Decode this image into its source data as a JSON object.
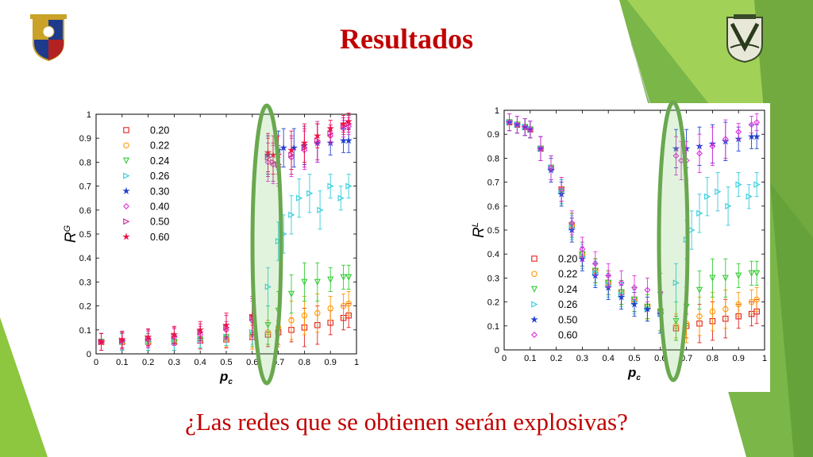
{
  "slide": {
    "title": "Resultados",
    "question": "¿Las redes que se obtienen serán explosivas?",
    "logos": [
      "university-crest-icon",
      "unam-crest-icon"
    ],
    "colors": {
      "title": "#c00000",
      "accent_green": "#8dc63f",
      "highlight_ellipse": "#6aa84f"
    }
  },
  "chart_data": [
    {
      "type": "scatter",
      "title": "",
      "xlabel": "p_c",
      "ylabel": "R^G",
      "xlim": [
        0,
        1
      ],
      "ylim": [
        0,
        1
      ],
      "xticks": [
        "0",
        "0.1",
        "0.2",
        "0.3",
        "0.4",
        "0.5",
        "0.6",
        "0.7",
        "0.8",
        "0.9",
        "1"
      ],
      "yticks": [
        "0",
        "0.1",
        "0.2",
        "0.3",
        "0.4",
        "0.5",
        "0.6",
        "0.7",
        "0.8",
        "0.9",
        "1"
      ],
      "legend_position": "top-left",
      "error_bars": true,
      "series": [
        {
          "name": "0.20",
          "marker": "square",
          "color": "#e02020",
          "x": [
            0.02,
            0.1,
            0.2,
            0.3,
            0.4,
            0.5,
            0.6,
            0.66,
            0.7,
            0.75,
            0.8,
            0.85,
            0.9,
            0.95,
            0.97
          ],
          "y": [
            0.05,
            0.05,
            0.05,
            0.05,
            0.055,
            0.06,
            0.07,
            0.08,
            0.09,
            0.1,
            0.11,
            0.12,
            0.13,
            0.15,
            0.16
          ]
        },
        {
          "name": "0.22",
          "marker": "circle",
          "color": "#ff9900",
          "x": [
            0.02,
            0.1,
            0.2,
            0.3,
            0.4,
            0.5,
            0.6,
            0.66,
            0.7,
            0.75,
            0.8,
            0.85,
            0.9,
            0.95,
            0.97
          ],
          "y": [
            0.05,
            0.05,
            0.05,
            0.05,
            0.06,
            0.065,
            0.07,
            0.09,
            0.11,
            0.14,
            0.16,
            0.17,
            0.19,
            0.2,
            0.21
          ]
        },
        {
          "name": "0.24",
          "marker": "triangle-down",
          "color": "#33cc33",
          "x": [
            0.02,
            0.1,
            0.2,
            0.3,
            0.4,
            0.5,
            0.6,
            0.66,
            0.7,
            0.75,
            0.8,
            0.85,
            0.9,
            0.95,
            0.97
          ],
          "y": [
            0.05,
            0.05,
            0.05,
            0.05,
            0.06,
            0.07,
            0.08,
            0.12,
            0.18,
            0.25,
            0.3,
            0.3,
            0.31,
            0.32,
            0.32
          ]
        },
        {
          "name": "0.26",
          "marker": "triangle-right",
          "color": "#33ccdd",
          "x": [
            0.02,
            0.1,
            0.2,
            0.3,
            0.4,
            0.5,
            0.6,
            0.66,
            0.7,
            0.72,
            0.75,
            0.78,
            0.82,
            0.86,
            0.9,
            0.94,
            0.97
          ],
          "y": [
            0.05,
            0.05,
            0.05,
            0.05,
            0.06,
            0.07,
            0.09,
            0.28,
            0.47,
            0.5,
            0.58,
            0.65,
            0.67,
            0.6,
            0.7,
            0.65,
            0.7
          ]
        },
        {
          "name": "0.30",
          "marker": "star",
          "color": "#1f3fcc",
          "x": [
            0.66,
            0.7,
            0.72,
            0.76,
            0.8,
            0.85,
            0.9,
            0.95,
            0.97
          ],
          "y": [
            0.83,
            0.85,
            0.86,
            0.86,
            0.87,
            0.88,
            0.88,
            0.89,
            0.89
          ]
        },
        {
          "name": "0.40",
          "marker": "diamond",
          "color": "#dd33dd",
          "x": [
            0.02,
            0.1,
            0.2,
            0.3,
            0.4,
            0.5,
            0.6,
            0.66,
            0.68,
            0.7,
            0.75,
            0.8,
            0.85,
            0.9,
            0.95,
            0.97
          ],
          "y": [
            0.05,
            0.055,
            0.06,
            0.07,
            0.08,
            0.1,
            0.14,
            0.8,
            0.79,
            0.78,
            0.82,
            0.85,
            0.88,
            0.91,
            0.94,
            0.95
          ]
        },
        {
          "name": "0.50",
          "marker": "triangle-right",
          "color": "#cc2299",
          "x": [
            0.02,
            0.1,
            0.2,
            0.3,
            0.4,
            0.5,
            0.6,
            0.66,
            0.68,
            0.7,
            0.75,
            0.8,
            0.85,
            0.9,
            0.95,
            0.97
          ],
          "y": [
            0.05,
            0.055,
            0.065,
            0.075,
            0.09,
            0.11,
            0.15,
            0.82,
            0.8,
            0.79,
            0.83,
            0.86,
            0.89,
            0.92,
            0.95,
            0.96
          ]
        },
        {
          "name": "0.60",
          "marker": "star",
          "color": "#ee1144",
          "x": [
            0.02,
            0.1,
            0.2,
            0.3,
            0.4,
            0.5,
            0.6,
            0.66,
            0.68,
            0.7,
            0.75,
            0.8,
            0.85,
            0.9,
            0.95,
            0.97
          ],
          "y": [
            0.05,
            0.06,
            0.07,
            0.08,
            0.1,
            0.12,
            0.16,
            0.84,
            0.83,
            0.83,
            0.85,
            0.88,
            0.91,
            0.94,
            0.96,
            0.97
          ]
        }
      ]
    },
    {
      "type": "scatter",
      "title": "",
      "xlabel": "p_c",
      "ylabel": "R^L",
      "xlim": [
        0,
        1
      ],
      "ylim": [
        0,
        1
      ],
      "xticks": [
        "0",
        "0.1",
        "0.2",
        "0.3",
        "0.4",
        "0.5",
        "0.6",
        "0.7",
        "0.8",
        "0.9",
        "1"
      ],
      "yticks": [
        "0",
        "0.1",
        "0.2",
        "0.3",
        "0.4",
        "0.5",
        "0.6",
        "0.7",
        "0.8",
        "0.9",
        "1"
      ],
      "legend_position": "bottom-left",
      "error_bars": true,
      "series": [
        {
          "name": "0.20",
          "marker": "square",
          "color": "#e02020",
          "x": [
            0.02,
            0.05,
            0.08,
            0.1,
            0.14,
            0.18,
            0.22,
            0.26,
            0.3,
            0.35,
            0.4,
            0.45,
            0.5,
            0.55,
            0.6,
            0.66,
            0.7,
            0.75,
            0.8,
            0.85,
            0.9,
            0.95,
            0.97
          ],
          "y": [
            0.95,
            0.94,
            0.93,
            0.92,
            0.84,
            0.76,
            0.67,
            0.52,
            0.4,
            0.33,
            0.28,
            0.24,
            0.21,
            0.18,
            0.16,
            0.09,
            0.1,
            0.11,
            0.12,
            0.13,
            0.14,
            0.15,
            0.16
          ]
        },
        {
          "name": "0.22",
          "marker": "circle",
          "color": "#ff9900",
          "x": [
            0.02,
            0.05,
            0.08,
            0.1,
            0.14,
            0.18,
            0.22,
            0.26,
            0.3,
            0.35,
            0.4,
            0.45,
            0.5,
            0.55,
            0.6,
            0.66,
            0.7,
            0.75,
            0.8,
            0.85,
            0.9,
            0.95,
            0.97
          ],
          "y": [
            0.95,
            0.94,
            0.93,
            0.92,
            0.84,
            0.76,
            0.67,
            0.52,
            0.4,
            0.33,
            0.28,
            0.24,
            0.21,
            0.18,
            0.16,
            0.1,
            0.11,
            0.14,
            0.16,
            0.17,
            0.19,
            0.2,
            0.21
          ]
        },
        {
          "name": "0.24",
          "marker": "triangle-down",
          "color": "#33cc33",
          "x": [
            0.02,
            0.05,
            0.08,
            0.1,
            0.14,
            0.18,
            0.22,
            0.26,
            0.3,
            0.35,
            0.4,
            0.45,
            0.5,
            0.55,
            0.6,
            0.66,
            0.7,
            0.75,
            0.8,
            0.85,
            0.9,
            0.95,
            0.97
          ],
          "y": [
            0.95,
            0.94,
            0.93,
            0.92,
            0.84,
            0.76,
            0.66,
            0.52,
            0.4,
            0.33,
            0.28,
            0.24,
            0.21,
            0.18,
            0.16,
            0.12,
            0.18,
            0.25,
            0.3,
            0.3,
            0.31,
            0.32,
            0.32
          ]
        },
        {
          "name": "0.26",
          "marker": "triangle-right",
          "color": "#33ccdd",
          "x": [
            0.02,
            0.05,
            0.08,
            0.1,
            0.14,
            0.18,
            0.22,
            0.26,
            0.3,
            0.35,
            0.4,
            0.45,
            0.5,
            0.55,
            0.6,
            0.66,
            0.7,
            0.72,
            0.75,
            0.78,
            0.82,
            0.86,
            0.9,
            0.94,
            0.97
          ],
          "y": [
            0.95,
            0.94,
            0.93,
            0.92,
            0.84,
            0.76,
            0.66,
            0.51,
            0.39,
            0.32,
            0.27,
            0.23,
            0.2,
            0.17,
            0.15,
            0.28,
            0.46,
            0.5,
            0.57,
            0.64,
            0.66,
            0.6,
            0.69,
            0.64,
            0.69
          ]
        },
        {
          "name": "0.50",
          "marker": "star",
          "color": "#1f3fcc",
          "x": [
            0.02,
            0.05,
            0.08,
            0.1,
            0.14,
            0.18,
            0.22,
            0.26,
            0.3,
            0.35,
            0.4,
            0.45,
            0.5,
            0.55,
            0.6,
            0.66,
            0.7,
            0.75,
            0.8,
            0.85,
            0.9,
            0.95,
            0.97
          ],
          "y": [
            0.95,
            0.94,
            0.93,
            0.92,
            0.84,
            0.75,
            0.65,
            0.5,
            0.38,
            0.31,
            0.26,
            0.22,
            0.19,
            0.17,
            0.15,
            0.84,
            0.84,
            0.85,
            0.86,
            0.87,
            0.88,
            0.89,
            0.89
          ]
        },
        {
          "name": "0.60",
          "marker": "diamond",
          "color": "#dd33dd",
          "x": [
            0.02,
            0.05,
            0.08,
            0.1,
            0.14,
            0.18,
            0.22,
            0.26,
            0.3,
            0.35,
            0.4,
            0.45,
            0.5,
            0.55,
            0.6,
            0.66,
            0.68,
            0.7,
            0.75,
            0.8,
            0.85,
            0.9,
            0.95,
            0.97
          ],
          "y": [
            0.95,
            0.94,
            0.93,
            0.92,
            0.84,
            0.76,
            0.67,
            0.53,
            0.42,
            0.36,
            0.31,
            0.28,
            0.26,
            0.25,
            0.24,
            0.81,
            0.79,
            0.79,
            0.82,
            0.85,
            0.88,
            0.91,
            0.94,
            0.95
          ]
        }
      ]
    }
  ]
}
